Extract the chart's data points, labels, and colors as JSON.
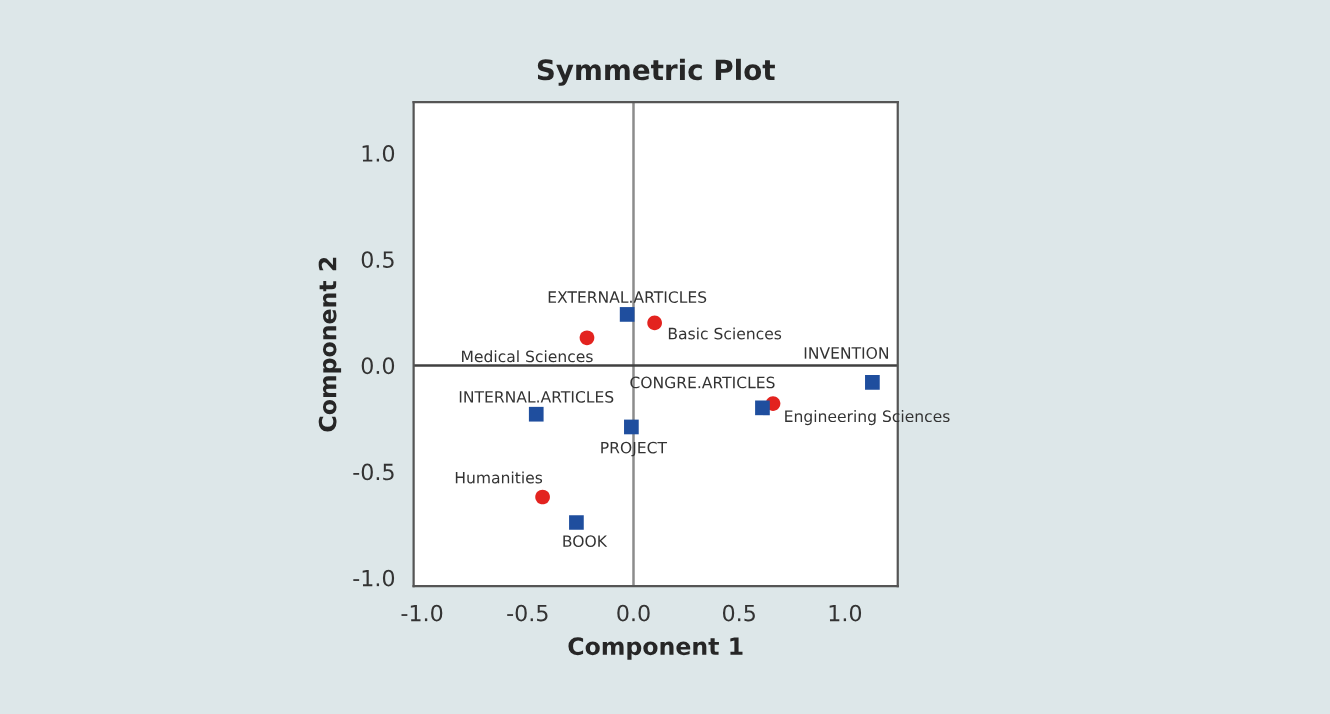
{
  "chart_data": {
    "type": "scatter",
    "title": "Symmetric Plot",
    "xlabel": "Component 1",
    "ylabel": "Component 2",
    "xlim": [
      -1.04,
      1.25
    ],
    "ylim": [
      -1.04,
      1.24
    ],
    "xticks": [
      {
        "value": -1.0,
        "label": "-1.0"
      },
      {
        "value": -0.5,
        "label": "-0.5"
      },
      {
        "value": 0.0,
        "label": "0.0"
      },
      {
        "value": 0.5,
        "label": "0.5"
      },
      {
        "value": 1.0,
        "label": "1.0"
      }
    ],
    "yticks": [
      {
        "value": -1.0,
        "label": "-1.0"
      },
      {
        "value": -0.5,
        "label": "-0.5"
      },
      {
        "value": 0.0,
        "label": "0.0"
      },
      {
        "value": 0.5,
        "label": "0.5"
      },
      {
        "value": 1.0,
        "label": "1.0"
      }
    ],
    "series": [
      {
        "color": "#e3231f",
        "marker": "circle",
        "x": [
          -0.22,
          0.1,
          0.66,
          -0.43
        ],
        "values": [
          0.13,
          0.2,
          -0.18,
          -0.62
        ],
        "value_labels": [
          "Medical Sciences",
          "Basic Sciences",
          "Engineering Sciences",
          "Humanities"
        ]
      },
      {
        "color": "#1f4e9e",
        "marker": "square",
        "x": [
          -0.03,
          1.13,
          0.61,
          -0.46,
          -0.01,
          -0.27
        ],
        "values": [
          0.24,
          -0.08,
          -0.2,
          -0.23,
          -0.29,
          -0.74
        ],
        "value_labels": [
          "EXTERNAL.ARTICLES",
          "INVENTION",
          "CONGRE.ARTICLES",
          "INTERNAL.ARTICLES",
          "PROJECT",
          "BOOK"
        ]
      }
    ],
    "ref_lines": [
      {
        "axis": "x",
        "value": 0,
        "color": "#8c8c8c"
      },
      {
        "axis": "y",
        "value": 0,
        "color": "#404040"
      }
    ],
    "grid": false,
    "legend": false
  }
}
